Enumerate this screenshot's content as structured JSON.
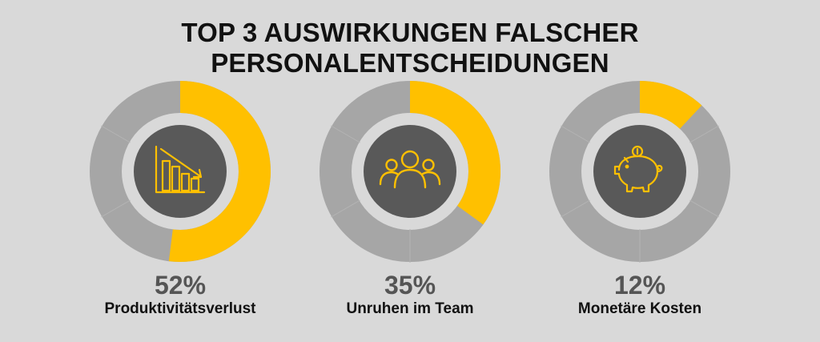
{
  "title": "TOP 3 AUSWIRKUNGEN FALSCHER PERSONALENTSCHEIDUNGEN",
  "colors": {
    "background": "#d9d9d9",
    "accent": "#ffc000",
    "ring_track": "#a6a6a6",
    "center_disc": "#595959",
    "text": "#111111",
    "percent_text": "#555555"
  },
  "chart_data": [
    {
      "type": "pie",
      "variant": "donut",
      "value": 52,
      "value_label": "52%",
      "caption": "Produktivitätsverlust",
      "icon": "declining-bar-chart-icon"
    },
    {
      "type": "pie",
      "variant": "donut",
      "value": 35,
      "value_label": "35%",
      "caption": "Unruhen im Team",
      "icon": "team-people-icon"
    },
    {
      "type": "pie",
      "variant": "donut",
      "value": 12,
      "value_label": "12%",
      "caption": "Monetäre Kosten",
      "icon": "piggy-bank-icon"
    }
  ]
}
